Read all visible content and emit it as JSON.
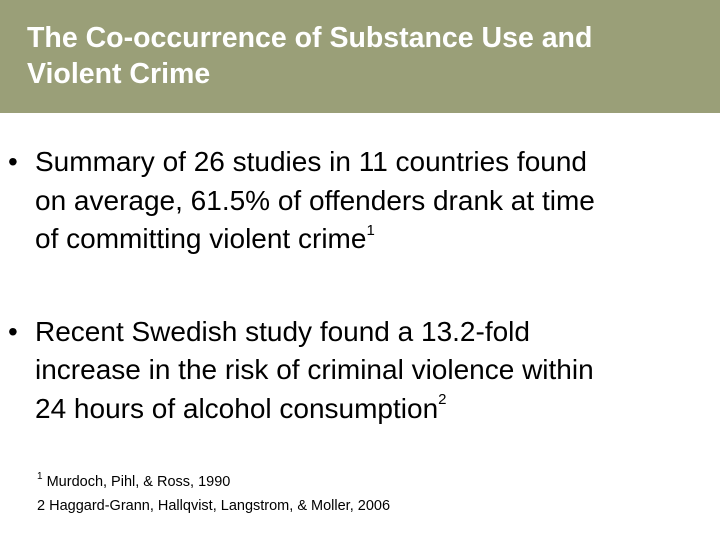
{
  "slide": {
    "title_line1": "The Co-occurrence of Substance Use and",
    "title_line2": "Violent Crime",
    "colors": {
      "header_bg": "#9a9f78",
      "title_text": "#ffffff",
      "body_text": "#000000"
    }
  },
  "bullets": [
    {
      "marker": "•",
      "line1": "Summary of 26 studies in 11 countries found",
      "line2": "on average, 61.5% of offenders drank at time",
      "line3": "of committing violent crime",
      "sup": "1"
    },
    {
      "marker": "•",
      "line1": "Recent Swedish study found a 13.2-fold",
      "line2": "increase in the risk of criminal violence within",
      "line3": "24 hours of alcohol consumption",
      "sup": "2"
    }
  ],
  "references": [
    {
      "sup": "1",
      "text": " Murdoch, Pihl, & Ross, 1990"
    },
    {
      "text": "2 Haggard-Grann, Hallqvist, Langstrom, & Moller, 2006"
    }
  ]
}
